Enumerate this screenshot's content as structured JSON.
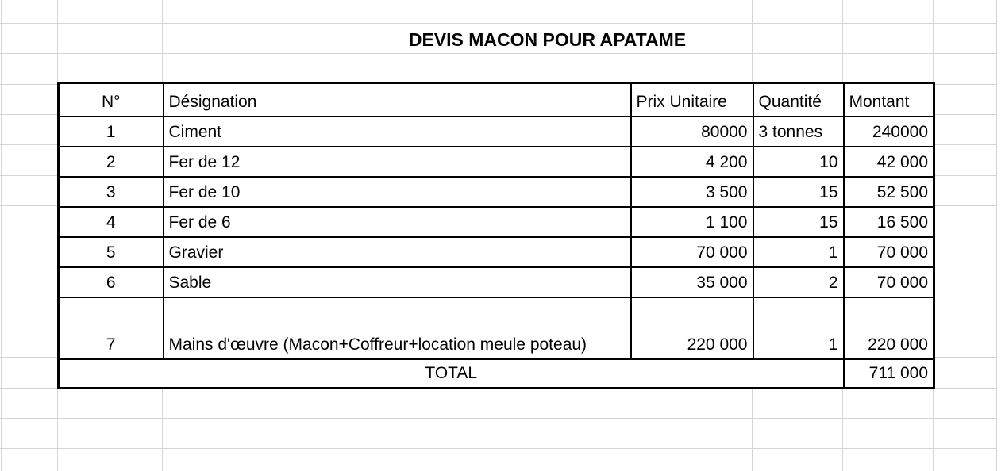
{
  "sheet": {
    "title": "DEVIS MACON POUR APATAME",
    "table": {
      "columns": [
        "N°",
        "Désignation",
        "Prix Unitaire",
        "Quantité",
        "Montant"
      ],
      "rows": [
        [
          "1",
          "Ciment",
          "80000",
          "3 tonnes",
          "240000"
        ],
        [
          "2",
          "Fer de 12",
          "4 200",
          "10",
          "42 000"
        ],
        [
          "3",
          "Fer de 10",
          "3 500",
          "15",
          "52 500"
        ],
        [
          "4",
          "Fer de 6",
          "1 100",
          "15",
          "16 500"
        ],
        [
          "5",
          "Gravier",
          "70 000",
          "1",
          "70 000"
        ],
        [
          "6",
          "Sable",
          "35 000",
          "2",
          "70 000"
        ],
        [
          "7",
          "Mains d'œuvre (Macon+Coffreur+location meule poteau)",
          "220 000",
          "1",
          "220 000"
        ]
      ],
      "total_label": "TOTAL",
      "total_value": "711 000"
    },
    "colors": {
      "gridline": "#d4d4d4",
      "table_border": "#000000",
      "text": "#000000",
      "background": "#ffffff"
    }
  }
}
